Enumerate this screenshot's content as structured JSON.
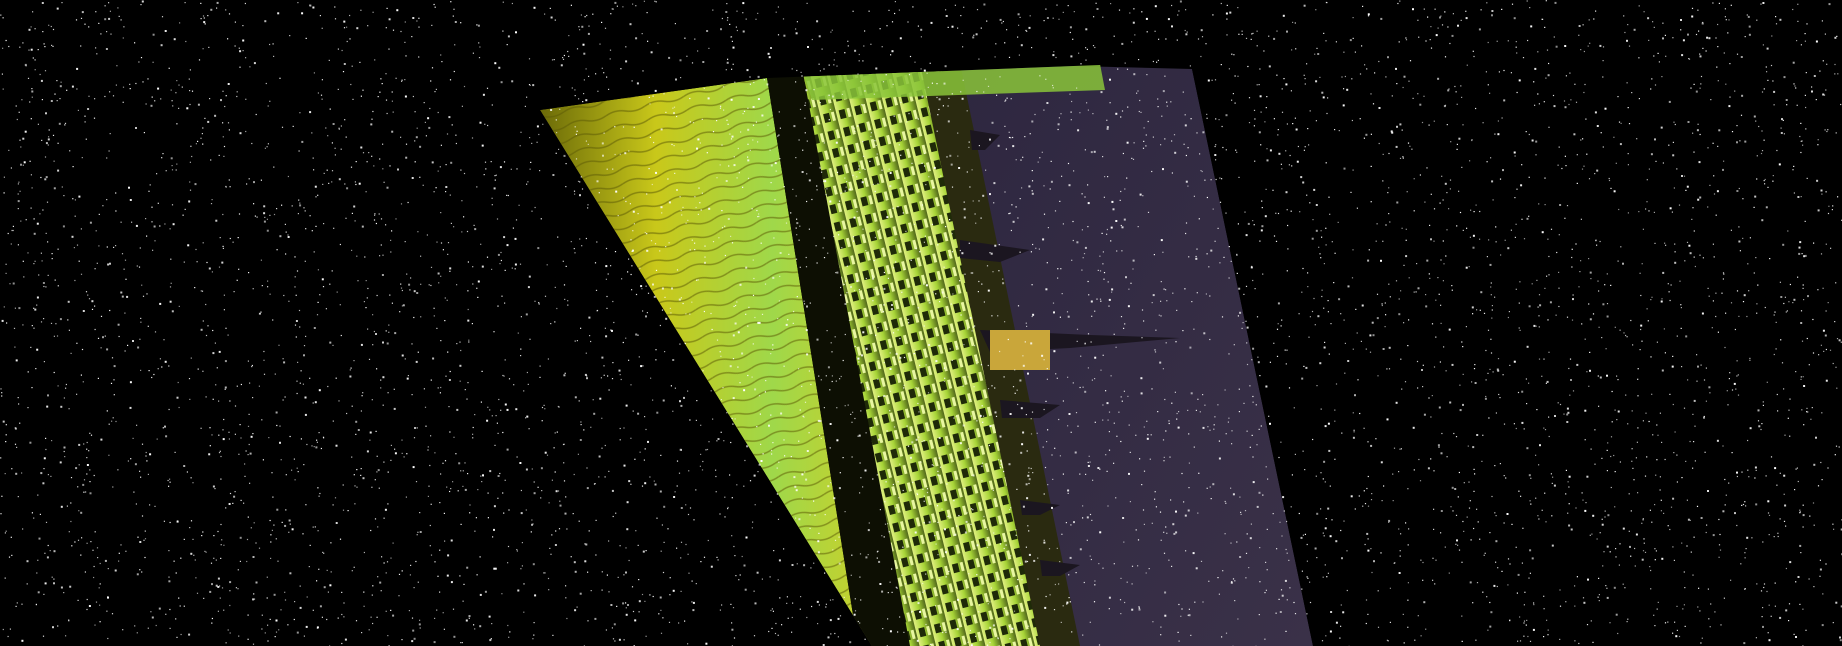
{
  "image": {
    "subject": "photo-rotated",
    "colors": {
      "background": "#000000",
      "noise": "#ffffff",
      "water_dark": "#6b6a08",
      "water_mid": "#c9c81a",
      "water_green": "#8fe05a",
      "building_dark": "#1a1a06",
      "building_lit": "#b4e03a",
      "window_light": "#e8f6a0",
      "sky": "#2a2336",
      "sky_light": "#3a3148",
      "spire": "#1b1620"
    }
  }
}
